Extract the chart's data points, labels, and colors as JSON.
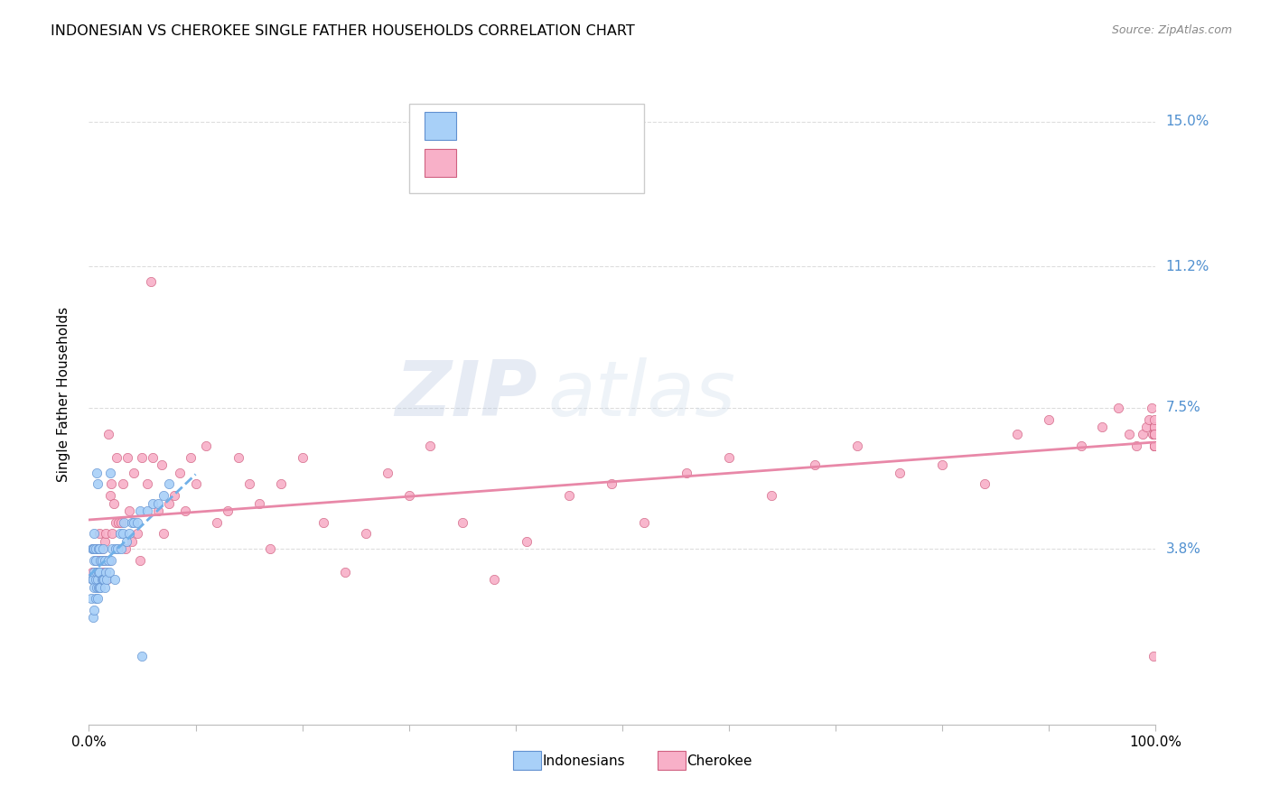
{
  "title": "INDONESIAN VS CHEROKEE SINGLE FATHER HOUSEHOLDS CORRELATION CHART",
  "source": "Source: ZipAtlas.com",
  "ylabel": "Single Father Households",
  "ytick_labels": [
    "3.8%",
    "7.5%",
    "11.2%",
    "15.0%"
  ],
  "ytick_values": [
    0.038,
    0.075,
    0.112,
    0.15
  ],
  "xtick_labels": [
    "0.0%",
    "100.0%"
  ],
  "xtick_values": [
    0.0,
    1.0
  ],
  "xlim": [
    0.0,
    1.0
  ],
  "ylim": [
    -0.008,
    0.165
  ],
  "color_indonesian_fill": "#a8d0f8",
  "color_indonesian_edge": "#6090d0",
  "color_cherokee_fill": "#f8b0c8",
  "color_cherokee_edge": "#d06080",
  "color_indo_line": "#70b0e8",
  "color_cher_line": "#e888a8",
  "color_tick_label": "#5090d0",
  "watermark_zip": "ZIP",
  "watermark_atlas": "atlas",
  "indonesian_x": [
    0.002,
    0.003,
    0.003,
    0.004,
    0.004,
    0.004,
    0.005,
    0.005,
    0.005,
    0.005,
    0.005,
    0.005,
    0.006,
    0.006,
    0.006,
    0.006,
    0.007,
    0.007,
    0.007,
    0.008,
    0.008,
    0.008,
    0.009,
    0.009,
    0.009,
    0.01,
    0.01,
    0.01,
    0.011,
    0.011,
    0.012,
    0.012,
    0.013,
    0.013,
    0.014,
    0.015,
    0.015,
    0.016,
    0.017,
    0.018,
    0.019,
    0.02,
    0.021,
    0.022,
    0.024,
    0.025,
    0.027,
    0.029,
    0.03,
    0.032,
    0.033,
    0.035,
    0.038,
    0.04,
    0.042,
    0.045,
    0.048,
    0.05,
    0.055,
    0.06,
    0.065,
    0.07,
    0.075
  ],
  "indonesian_y": [
    0.025,
    0.03,
    0.038,
    0.02,
    0.03,
    0.038,
    0.022,
    0.028,
    0.032,
    0.035,
    0.038,
    0.042,
    0.025,
    0.03,
    0.035,
    0.038,
    0.028,
    0.032,
    0.058,
    0.025,
    0.03,
    0.055,
    0.028,
    0.032,
    0.038,
    0.028,
    0.032,
    0.038,
    0.028,
    0.035,
    0.03,
    0.035,
    0.03,
    0.038,
    0.03,
    0.028,
    0.035,
    0.032,
    0.03,
    0.035,
    0.032,
    0.058,
    0.035,
    0.038,
    0.03,
    0.038,
    0.038,
    0.042,
    0.038,
    0.042,
    0.045,
    0.04,
    0.042,
    0.045,
    0.045,
    0.045,
    0.048,
    0.01,
    0.048,
    0.05,
    0.05,
    0.052,
    0.055
  ],
  "cherokee_x": [
    0.003,
    0.005,
    0.005,
    0.006,
    0.007,
    0.008,
    0.009,
    0.01,
    0.01,
    0.011,
    0.012,
    0.013,
    0.014,
    0.015,
    0.016,
    0.017,
    0.018,
    0.019,
    0.02,
    0.021,
    0.022,
    0.023,
    0.025,
    0.026,
    0.028,
    0.03,
    0.032,
    0.034,
    0.036,
    0.038,
    0.04,
    0.042,
    0.045,
    0.048,
    0.05,
    0.055,
    0.058,
    0.06,
    0.065,
    0.068,
    0.07,
    0.075,
    0.08,
    0.085,
    0.09,
    0.095,
    0.1,
    0.11,
    0.12,
    0.13,
    0.14,
    0.15,
    0.16,
    0.17,
    0.18,
    0.2,
    0.22,
    0.24,
    0.26,
    0.28,
    0.3,
    0.32,
    0.35,
    0.38,
    0.41,
    0.45,
    0.49,
    0.52,
    0.56,
    0.6,
    0.64,
    0.68,
    0.72,
    0.76,
    0.8,
    0.84,
    0.87,
    0.9,
    0.93,
    0.95,
    0.965,
    0.975,
    0.982,
    0.988,
    0.991,
    0.994,
    0.996,
    0.997,
    0.998,
    0.999,
    0.999,
    0.999,
    0.999,
    0.999,
    0.999,
    0.999,
    0.999,
    0.999,
    0.999,
    0.999,
    0.999,
    0.999
  ],
  "cherokee_y": [
    0.032,
    0.03,
    0.038,
    0.035,
    0.032,
    0.038,
    0.03,
    0.035,
    0.042,
    0.03,
    0.038,
    0.032,
    0.035,
    0.04,
    0.042,
    0.03,
    0.068,
    0.035,
    0.052,
    0.055,
    0.042,
    0.05,
    0.045,
    0.062,
    0.045,
    0.045,
    0.055,
    0.038,
    0.062,
    0.048,
    0.04,
    0.058,
    0.042,
    0.035,
    0.062,
    0.055,
    0.108,
    0.062,
    0.048,
    0.06,
    0.042,
    0.05,
    0.052,
    0.058,
    0.048,
    0.062,
    0.055,
    0.065,
    0.045,
    0.048,
    0.062,
    0.055,
    0.05,
    0.038,
    0.055,
    0.062,
    0.045,
    0.032,
    0.042,
    0.058,
    0.052,
    0.065,
    0.045,
    0.03,
    0.04,
    0.052,
    0.055,
    0.045,
    0.058,
    0.062,
    0.052,
    0.06,
    0.065,
    0.058,
    0.06,
    0.055,
    0.068,
    0.072,
    0.065,
    0.07,
    0.075,
    0.068,
    0.065,
    0.068,
    0.07,
    0.072,
    0.075,
    0.068,
    0.01,
    0.065,
    0.068,
    0.07,
    0.065,
    0.07,
    0.068,
    0.065,
    0.068,
    0.07,
    0.072,
    0.068,
    0.065,
    0.068
  ]
}
